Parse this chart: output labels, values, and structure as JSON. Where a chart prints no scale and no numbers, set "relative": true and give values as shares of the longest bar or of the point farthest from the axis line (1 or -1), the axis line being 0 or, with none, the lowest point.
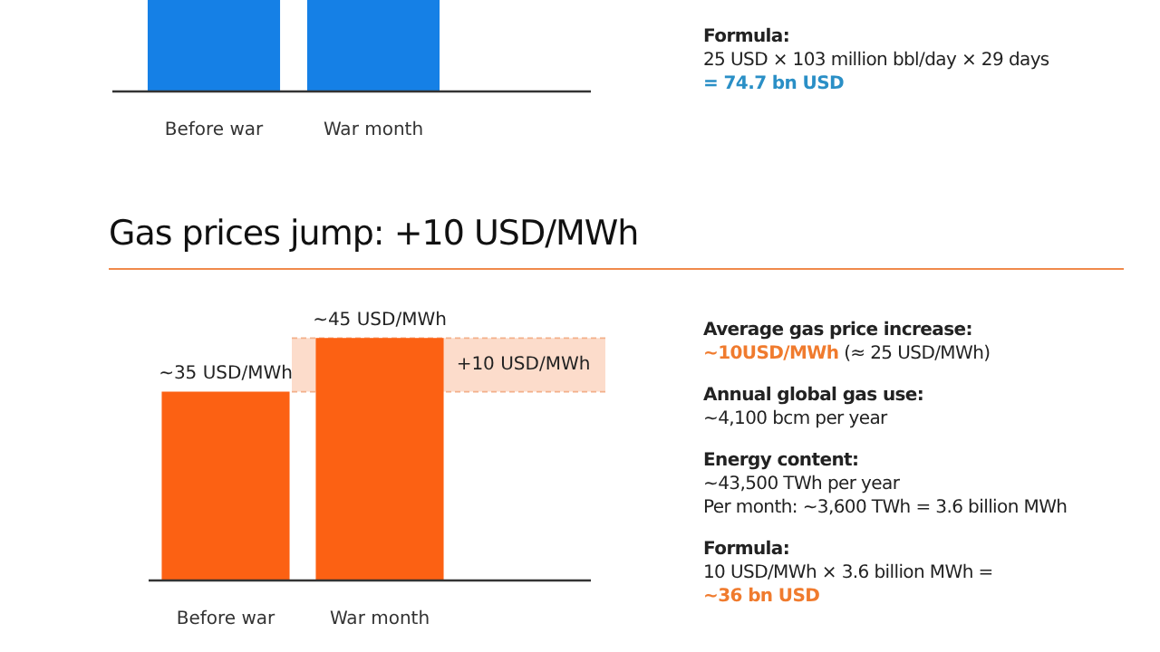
{
  "chart_data": [
    {
      "type": "bar",
      "relative": true,
      "categories": [
        "Before war",
        "War month"
      ],
      "values": [
        1,
        1
      ],
      "color": "#1580e6"
    },
    {
      "type": "other",
      "annotations": [
        "Formula:",
        "25 USD × 103 million bbl/day × 29 days",
        "= 74.7 bn USD"
      ]
    },
    {
      "type": "bar",
      "title": "Gas prices jump: +10 USD/MWh",
      "categories": [
        "Before war",
        "War month"
      ],
      "values": [
        35,
        45
      ],
      "color": "#fc6113",
      "value_labels": [
        "~35 USD/MWh",
        "~45 USD/MWh"
      ],
      "bands": [
        {
          "axis": "y",
          "from": 35,
          "to": 45,
          "label": "+10 USD/MWh",
          "color": "#fcdccb"
        }
      ]
    },
    {
      "type": "other",
      "annotations": [
        "Average gas price increase:",
        "~10USD/MWh",
        "(≈ 25 USD/MWh)",
        "Annual global gas use:",
        "~4,100 bcm per year",
        "Energy content:",
        "~43,500 TWh per year",
        "Per month: ~3,600 TWh = 3.6 billion MWh",
        "Formula:",
        "10 USD/MWh × 3.6 billion MWh =",
        "~36 bn USD"
      ]
    }
  ]
}
